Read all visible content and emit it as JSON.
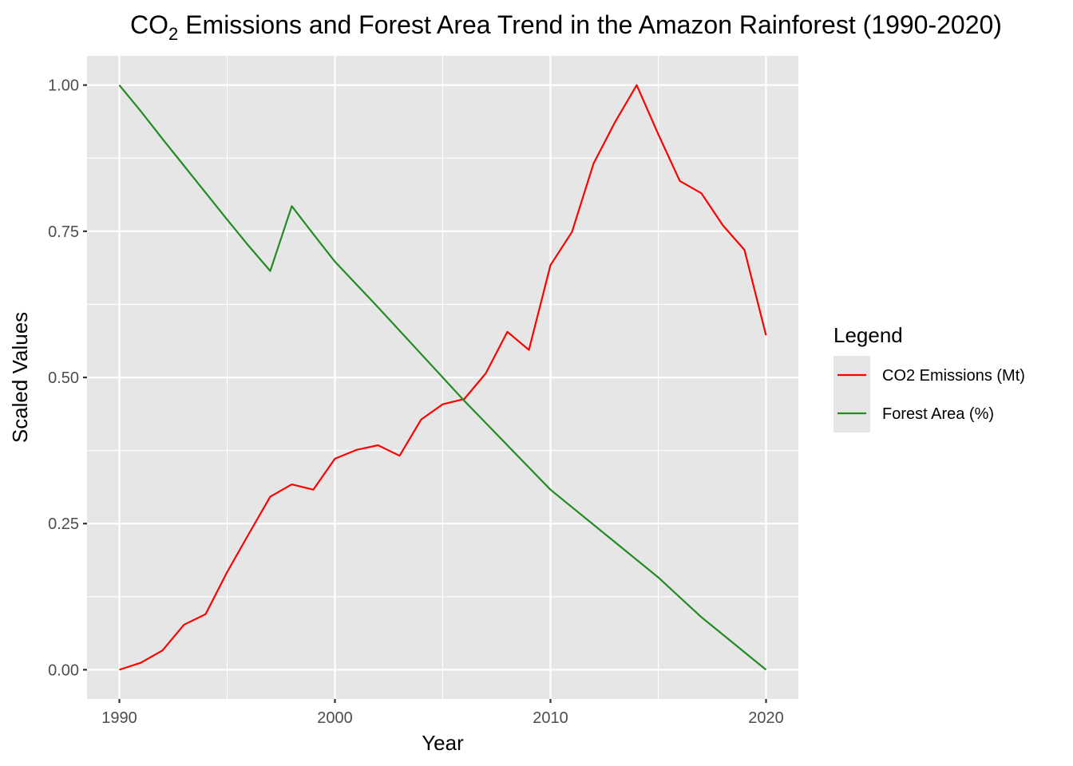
{
  "chart_data": {
    "type": "line",
    "title": "CO₂ Emissions and Forest Area Trend in the Amazon Rainforest (1990-2020)",
    "title_parts": {
      "before": "CO",
      "subscript": "2",
      "after": " Emissions and Forest Area Trend in the Amazon Rainforest (1990-2020)"
    },
    "xlabel": "Year",
    "ylabel": "Scaled Values",
    "xlim": [
      1988.5,
      2021.5
    ],
    "ylim": [
      -0.05,
      1.05
    ],
    "x_ticks": [
      1990,
      2000,
      2010,
      2020
    ],
    "x_minor_ticks": [
      1995,
      2005,
      2015
    ],
    "y_ticks": [
      0,
      0.25,
      0.5,
      0.75,
      1
    ],
    "y_tick_labels": [
      "0.00",
      "0.25",
      "0.50",
      "0.75",
      "1.00"
    ],
    "y_minor_ticks": [
      0.125,
      0.375,
      0.625,
      0.875
    ],
    "grid": true,
    "legend": {
      "title": "Legend",
      "position": "right"
    },
    "x": [
      1990,
      1991,
      1992,
      1993,
      1994,
      1995,
      1996,
      1997,
      1998,
      1999,
      2000,
      2001,
      2002,
      2003,
      2004,
      2005,
      2006,
      2007,
      2008,
      2009,
      2010,
      2011,
      2012,
      2013,
      2014,
      2015,
      2016,
      2017,
      2018,
      2019,
      2020
    ],
    "series": [
      {
        "name": "CO2 Emissions (Mt)",
        "color": "#ff0000",
        "values": [
          0.0,
          0.012,
          0.033,
          0.077,
          0.095,
          0.167,
          0.232,
          0.296,
          0.317,
          0.308,
          0.361,
          0.376,
          0.384,
          0.366,
          0.428,
          0.454,
          0.463,
          0.507,
          0.578,
          0.547,
          0.692,
          0.749,
          0.866,
          0.937,
          1.0,
          0.916,
          0.836,
          0.815,
          0.76,
          0.718,
          0.572
        ]
      },
      {
        "name": "Forest Area (%)",
        "color": "#228b22",
        "values": [
          1.0,
          0.955,
          0.908,
          0.862,
          0.816,
          0.77,
          0.725,
          0.682,
          0.793,
          0.745,
          0.698,
          0.659,
          0.62,
          0.58,
          0.54,
          0.5,
          0.46,
          0.422,
          0.384,
          0.346,
          0.308,
          0.278,
          0.248,
          0.218,
          0.188,
          0.158,
          0.124,
          0.09,
          0.06,
          0.03,
          0.0
        ]
      }
    ]
  },
  "colors": {
    "panel_background": "#e6e6e6",
    "grid": "#ffffff",
    "legend_key_background": "#e6e6e6"
  }
}
